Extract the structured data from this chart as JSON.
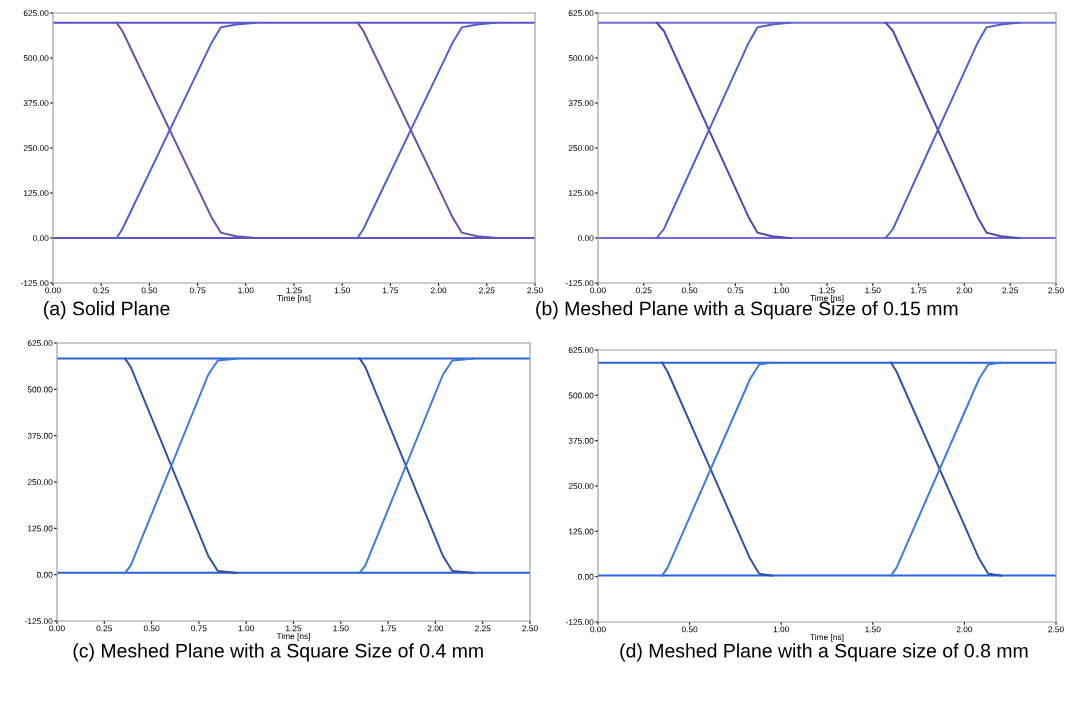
{
  "chart_data": [
    {
      "type": "line",
      "xlabel": "Time [ns]",
      "annotations": [
        "(a) Solid Plane"
      ],
      "xlim": [
        0,
        2.5
      ],
      "ylim": [
        -125,
        625
      ],
      "xticks": [
        {
          "value": 0,
          "label": "0.00"
        },
        {
          "value": 0.25,
          "label": "0.25"
        },
        {
          "value": 0.5,
          "label": "0.50"
        },
        {
          "value": 0.75,
          "label": "0.75"
        },
        {
          "value": 1.0,
          "label": "1.00"
        },
        {
          "value": 1.25,
          "label": "1.25"
        },
        {
          "value": 1.5,
          "label": "1.50"
        },
        {
          "value": 1.75,
          "label": "1.75"
        },
        {
          "value": 2.0,
          "label": "2.00"
        },
        {
          "value": 2.25,
          "label": "2.25"
        },
        {
          "value": 2.5,
          "label": "2.50"
        }
      ],
      "yticks": [
        {
          "value": -125,
          "label": "-125.00"
        },
        {
          "value": 0,
          "label": "0.00"
        },
        {
          "value": 125,
          "label": "125.00"
        },
        {
          "value": 250,
          "label": "250.00"
        },
        {
          "value": 375,
          "label": "375.00"
        },
        {
          "value": 500,
          "label": "500.00"
        },
        {
          "value": 625,
          "label": "625.00"
        }
      ],
      "grid": false,
      "legend": false,
      "marker": "none",
      "line_style": "solid",
      "series": [
        {
          "color": "#5b55c8",
          "x": [
            0,
            2.5
          ],
          "values": [
            598,
            598
          ]
        },
        {
          "color": "#5b55c8",
          "x": [
            0,
            2.5
          ],
          "values": [
            0,
            0
          ]
        },
        {
          "color": "#6a4fa8",
          "x": [
            0.33,
            0.36,
            0.82,
            0.87,
            0.95,
            1.05
          ],
          "values": [
            598,
            575,
            60,
            15,
            5,
            0
          ]
        },
        {
          "color": "#4f5fd0",
          "x": [
            0.33,
            0.36,
            0.82,
            0.87,
            0.95,
            1.05
          ],
          "values": [
            0,
            25,
            540,
            585,
            593,
            598
          ]
        },
        {
          "color": "#6a4fa8",
          "x": [
            1.58,
            1.61,
            2.07,
            2.12,
            2.2,
            2.3
          ],
          "values": [
            598,
            575,
            60,
            15,
            5,
            0
          ]
        },
        {
          "color": "#4f5fd0",
          "x": [
            1.58,
            1.61,
            2.07,
            2.12,
            2.2,
            2.3
          ],
          "values": [
            0,
            25,
            540,
            585,
            593,
            598
          ]
        }
      ]
    },
    {
      "type": "line",
      "xlabel": "Time [ns]",
      "annotations": [
        "(b) Meshed Plane with a Square Size of 0.15 mm"
      ],
      "xlim": [
        0,
        2.5
      ],
      "ylim": [
        -125,
        625
      ],
      "xticks": [
        {
          "value": 0,
          "label": "0.00"
        },
        {
          "value": 0.25,
          "label": "0.25"
        },
        {
          "value": 0.5,
          "label": "0.50"
        },
        {
          "value": 0.75,
          "label": "0.75"
        },
        {
          "value": 1.0,
          "label": "1.00"
        },
        {
          "value": 1.25,
          "label": "1.25"
        },
        {
          "value": 1.5,
          "label": "1.50"
        },
        {
          "value": 1.75,
          "label": "1.75"
        },
        {
          "value": 2.0,
          "label": "2.00"
        },
        {
          "value": 2.25,
          "label": "2.25"
        },
        {
          "value": 2.5,
          "label": "2.50"
        }
      ],
      "yticks": [
        {
          "value": -125,
          "label": "-125.00"
        },
        {
          "value": 0,
          "label": "0.00"
        },
        {
          "value": 125,
          "label": "125.00"
        },
        {
          "value": 250,
          "label": "250.00"
        },
        {
          "value": 375,
          "label": "375.00"
        },
        {
          "value": 500,
          "label": "500.00"
        },
        {
          "value": 625,
          "label": "625.00"
        }
      ],
      "grid": false,
      "legend": false,
      "marker": "none",
      "line_style": "solid",
      "series": [
        {
          "color": "#6f6ad8",
          "x": [
            0,
            2.5
          ],
          "values": [
            598,
            598
          ]
        },
        {
          "color": "#6f6ad8",
          "x": [
            0,
            2.5
          ],
          "values": [
            0,
            0
          ]
        },
        {
          "color": "#5045b0",
          "x": [
            0.32,
            0.36,
            0.82,
            0.87,
            0.95,
            1.05
          ],
          "values": [
            598,
            575,
            60,
            15,
            5,
            0
          ]
        },
        {
          "color": "#4f5fd0",
          "x": [
            0.32,
            0.36,
            0.82,
            0.87,
            0.95,
            1.05
          ],
          "values": [
            0,
            25,
            540,
            585,
            593,
            598
          ]
        },
        {
          "color": "#5045b0",
          "x": [
            1.57,
            1.61,
            2.07,
            2.12,
            2.2,
            2.3
          ],
          "values": [
            598,
            575,
            60,
            15,
            5,
            0
          ]
        },
        {
          "color": "#4f5fd0",
          "x": [
            1.57,
            1.61,
            2.07,
            2.12,
            2.2,
            2.3
          ],
          "values": [
            0,
            25,
            540,
            585,
            593,
            598
          ]
        }
      ]
    },
    {
      "type": "line",
      "xlabel": "Time [ns]",
      "annotations": [
        "(c) Meshed Plane with a Square Size of 0.4 mm"
      ],
      "xlim": [
        0,
        2.5
      ],
      "ylim": [
        -125,
        625
      ],
      "xticks": [
        {
          "value": 0,
          "label": "0.00"
        },
        {
          "value": 0.25,
          "label": "0.25"
        },
        {
          "value": 0.5,
          "label": "0.50"
        },
        {
          "value": 0.75,
          "label": "0.75"
        },
        {
          "value": 1.0,
          "label": "1.00"
        },
        {
          "value": 1.25,
          "label": "1.25"
        },
        {
          "value": 1.5,
          "label": "1.50"
        },
        {
          "value": 1.75,
          "label": "1.75"
        },
        {
          "value": 2.0,
          "label": "2.00"
        },
        {
          "value": 2.25,
          "label": "2.25"
        },
        {
          "value": 2.5,
          "label": "2.50"
        }
      ],
      "yticks": [
        {
          "value": -125,
          "label": "-125.00"
        },
        {
          "value": 0,
          "label": "0.00"
        },
        {
          "value": 125,
          "label": "125.00"
        },
        {
          "value": 250,
          "label": "250.00"
        },
        {
          "value": 375,
          "label": "375.00"
        },
        {
          "value": 500,
          "label": "500.00"
        },
        {
          "value": 625,
          "label": "625.00"
        }
      ],
      "grid": false,
      "legend": false,
      "marker": "none",
      "line_style": "solid",
      "series": [
        {
          "color": "#2a62e0",
          "x": [
            0,
            2.5
          ],
          "values": [
            583,
            583
          ]
        },
        {
          "color": "#2a62e0",
          "x": [
            0,
            2.5
          ],
          "values": [
            5,
            5
          ]
        },
        {
          "color": "#2f4fa8",
          "x": [
            0.36,
            0.39,
            0.8,
            0.85,
            0.95
          ],
          "values": [
            583,
            560,
            50,
            10,
            5
          ]
        },
        {
          "color": "#3a7ae0",
          "x": [
            0.36,
            0.39,
            0.8,
            0.85,
            0.95
          ],
          "values": [
            5,
            25,
            540,
            578,
            583
          ]
        },
        {
          "color": "#2f4fa8",
          "x": [
            1.6,
            1.63,
            2.04,
            2.09,
            2.2
          ],
          "values": [
            583,
            560,
            50,
            10,
            5
          ]
        },
        {
          "color": "#3a7ae0",
          "x": [
            1.6,
            1.63,
            2.04,
            2.09,
            2.2
          ],
          "values": [
            5,
            25,
            540,
            578,
            583
          ]
        }
      ]
    },
    {
      "type": "line",
      "xlabel": "Time [ns]",
      "annotations": [
        "(d) Meshed Plane with a Square size of 0.8 mm"
      ],
      "xlim": [
        0,
        2.5
      ],
      "ylim": [
        -125,
        625
      ],
      "xticks": [
        {
          "value": 0,
          "label": "0.00"
        },
        {
          "value": 0.5,
          "label": "0.50"
        },
        {
          "value": 1.0,
          "label": "1.00"
        },
        {
          "value": 1.5,
          "label": "1.50"
        },
        {
          "value": 2.0,
          "label": "2.00"
        },
        {
          "value": 2.5,
          "label": "2.50"
        }
      ],
      "yticks": [
        {
          "value": -125,
          "label": "-125.00"
        },
        {
          "value": 0,
          "label": "0.00"
        },
        {
          "value": 125,
          "label": "125.00"
        },
        {
          "value": 250,
          "label": "250.00"
        },
        {
          "value": 375,
          "label": "375.00"
        },
        {
          "value": 500,
          "label": "500.00"
        },
        {
          "value": 625,
          "label": "625.00"
        }
      ],
      "grid": false,
      "legend": false,
      "marker": "none",
      "line_style": "solid",
      "series": [
        {
          "color": "#2a62e0",
          "x": [
            0,
            2.5
          ],
          "values": [
            590,
            590
          ]
        },
        {
          "color": "#2a62e0",
          "x": [
            0,
            2.5
          ],
          "values": [
            3,
            3
          ]
        },
        {
          "color": "#2f4fa8",
          "x": [
            0.35,
            0.38,
            0.83,
            0.88,
            0.95
          ],
          "values": [
            590,
            565,
            50,
            8,
            3
          ]
        },
        {
          "color": "#3a7ae0",
          "x": [
            0.35,
            0.38,
            0.83,
            0.88,
            0.95
          ],
          "values": [
            3,
            25,
            545,
            585,
            590
          ]
        },
        {
          "color": "#2f4fa8",
          "x": [
            1.6,
            1.63,
            2.08,
            2.13,
            2.2
          ],
          "values": [
            590,
            565,
            50,
            8,
            3
          ]
        },
        {
          "color": "#3a7ae0",
          "x": [
            1.6,
            1.63,
            2.08,
            2.13,
            2.2
          ],
          "values": [
            3,
            25,
            545,
            585,
            590
          ]
        }
      ]
    }
  ]
}
